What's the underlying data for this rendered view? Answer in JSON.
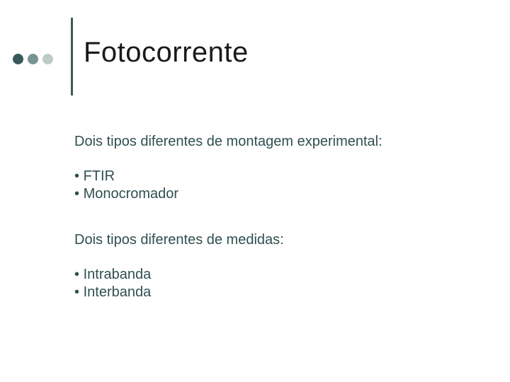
{
  "title": "Fotocorrente",
  "dots": {
    "colors": [
      "#3a5a5a",
      "#7a9494",
      "#bccaca"
    ],
    "size": 15,
    "gap": 6
  },
  "divider_color": "#3a5a5a",
  "text_color": "#2f4f4f",
  "title_color": "#1a1a1a",
  "title_fontsize": 40,
  "body_fontsize": 20,
  "background_color": "#ffffff",
  "sections": [
    {
      "intro": "Dois tipos diferentes de montagem experimental:",
      "items": [
        "FTIR",
        "Monocromador"
      ]
    },
    {
      "intro": "Dois tipos diferentes de medidas:",
      "items": [
        "Intrabanda",
        "Interbanda"
      ]
    }
  ],
  "bullet_char": "•"
}
